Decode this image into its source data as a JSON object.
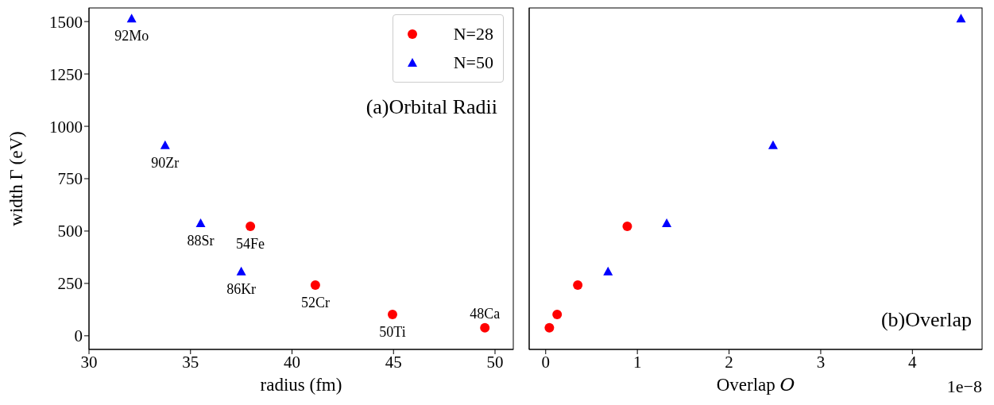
{
  "chart_data": [
    {
      "type": "scatter",
      "xlabel": "radius (fm)",
      "ylabel": "width Γ (eV)",
      "xlim": [
        30,
        50.9
      ],
      "xticks": [
        30,
        35,
        40,
        45,
        50
      ],
      "ylim": [
        -65,
        1565
      ],
      "yticks": [
        0,
        250,
        500,
        750,
        1000,
        1250,
        1500
      ],
      "legend": "top right",
      "grid": false,
      "series": [
        {
          "name": "N=28",
          "color": "#ff0000",
          "marker": "circle",
          "x": [
            37.95,
            41.15,
            44.95,
            49.5
          ],
          "values": [
            523,
            242,
            102,
            38
          ]
        },
        {
          "name": "N=50",
          "color": "#0000ff",
          "marker": "triangle",
          "x": [
            37.5,
            35.5,
            33.75,
            32.1
          ],
          "values": [
            307,
            538,
            910,
            1515
          ]
        }
      ],
      "annotations": [
        "(a)Orbital Radii",
        {
          "text": "54Fe",
          "x": 37.95,
          "y": 523
        },
        {
          "text": "52Cr",
          "x": 41.15,
          "y": 242
        },
        {
          "text": "50Ti",
          "x": 44.95,
          "y": 102
        },
        {
          "text": "48Ca",
          "x": 49.5,
          "y": 38
        },
        {
          "text": "86Kr",
          "x": 37.5,
          "y": 307
        },
        {
          "text": "88Sr",
          "x": 35.5,
          "y": 538
        },
        {
          "text": "90Zr",
          "x": 33.75,
          "y": 910
        },
        {
          "text": "92Mo",
          "x": 32.1,
          "y": 1515
        }
      ]
    },
    {
      "type": "scatter",
      "xlabel": "Overlap 𝑂",
      "xlim": [
        -0.18,
        4.76
      ],
      "xticks": [
        0,
        1,
        2,
        3,
        4
      ],
      "ylim": [
        -65,
        1565
      ],
      "yticks": [
        0,
        250,
        500,
        750,
        1000,
        1250,
        1500
      ],
      "tick_labels": "x",
      "grid": false,
      "series": [
        {
          "color": "#ff0000",
          "marker": "circle",
          "x": [
            0.89,
            0.35,
            0.125,
            0.04
          ],
          "values": [
            523,
            242,
            102,
            38
          ]
        },
        {
          "color": "#0000ff",
          "marker": "triangle",
          "x": [
            0.68,
            1.32,
            2.48,
            4.53
          ],
          "values": [
            307,
            538,
            910,
            1515
          ]
        }
      ],
      "annotations": [
        "(b)Overlap",
        "1e−8"
      ]
    }
  ]
}
